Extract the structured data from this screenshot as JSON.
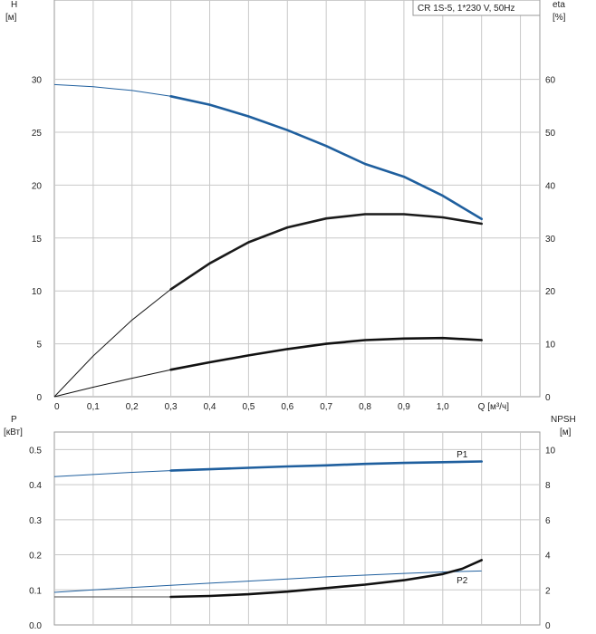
{
  "chart_data": [
    {
      "type": "line",
      "title": "CR 1S-5, 1*230 V, 50Hz",
      "xlabel": "Q [м³/ч]",
      "ylabel": "H [м]",
      "ylabel_line1": "H",
      "ylabel_line2": "[м]",
      "y2label": "eta [%]",
      "y2label_line1": "eta",
      "y2label_line2": "[%]",
      "xlim": [
        0,
        1.25
      ],
      "ylim": [
        0,
        37.5
      ],
      "y2lim": [
        0,
        75
      ],
      "grid": true,
      "x_ticks": [
        "0",
        "0,1",
        "0,2",
        "0,3",
        "0,4",
        "0,5",
        "0,6",
        "0,7",
        "0,8",
        "0,9",
        "1,0"
      ],
      "x_tick_values": [
        0,
        0.1,
        0.2,
        0.3,
        0.4,
        0.5,
        0.6,
        0.7,
        0.8,
        0.9,
        1.0
      ],
      "x_end_label": "Q [м³/ч]",
      "y_ticks": [
        "0",
        "5",
        "10",
        "15",
        "20",
        "25",
        "30"
      ],
      "y_tick_values": [
        0,
        5,
        10,
        15,
        20,
        25,
        30
      ],
      "y2_ticks": [
        "0",
        "10",
        "20",
        "30",
        "40",
        "50",
        "60"
      ],
      "y2_tick_values": [
        0,
        10,
        20,
        30,
        40,
        50,
        60
      ],
      "series": [
        {
          "color": "#1f5f9e",
          "axis": "left",
          "x": [
            0,
            0.1,
            0.2,
            0.3,
            0.4,
            0.5,
            0.6,
            0.7,
            0.8,
            0.9,
            1.0,
            1.1
          ],
          "values": [
            29.5,
            29.3,
            28.95,
            28.4,
            27.6,
            26.5,
            25.2,
            23.7,
            22.0,
            20.8,
            19.0,
            16.8
          ],
          "duty_start": 0.3
        },
        {
          "color": "#1a1a1a",
          "axis": "right",
          "x": [
            0,
            0.1,
            0.2,
            0.3,
            0.4,
            0.5,
            0.6,
            0.7,
            0.8,
            0.9,
            1.0,
            1.1
          ],
          "values": [
            0,
            7.7,
            14.5,
            20.3,
            25.2,
            29.2,
            32.0,
            33.7,
            34.5,
            34.5,
            33.9,
            32.7
          ],
          "duty_start": 0.3
        },
        {
          "color": "#111111",
          "axis": "right",
          "x": [
            0,
            0.1,
            0.2,
            0.3,
            0.4,
            0.5,
            0.6,
            0.7,
            0.8,
            0.9,
            1.0,
            1.1
          ],
          "values": [
            0,
            1.8,
            3.5,
            5.1,
            6.5,
            7.8,
            9.0,
            10.0,
            10.7,
            11.0,
            11.1,
            10.7
          ],
          "duty_start": 0.3
        }
      ]
    },
    {
      "type": "line",
      "xlabel": "",
      "ylabel": "P [кВт]",
      "ylabel_line1": "P",
      "ylabel_line2": "[кВт]",
      "y2label": "NPSH [м]",
      "y2label_line1": "NPSH",
      "y2label_line2": "[м]",
      "xlim": [
        0,
        1.25
      ],
      "ylim": [
        0,
        0.55
      ],
      "y2lim": [
        0,
        11
      ],
      "grid": true,
      "y_ticks": [
        "0.0",
        "0.1",
        "0.2",
        "0.3",
        "0.4",
        "0.5"
      ],
      "y_tick_values": [
        0,
        0.1,
        0.2,
        0.3,
        0.4,
        0.5
      ],
      "y2_ticks": [
        "0",
        "2",
        "4",
        "6",
        "8",
        "10"
      ],
      "y2_tick_values": [
        0,
        2,
        4,
        6,
        8,
        10
      ],
      "series": [
        {
          "name": "P1",
          "color": "#1f5f9e",
          "axis": "left",
          "x": [
            0,
            0.1,
            0.2,
            0.3,
            0.4,
            0.5,
            0.6,
            0.7,
            0.8,
            0.9,
            1.0,
            1.1
          ],
          "values": [
            0.423,
            0.429,
            0.435,
            0.44,
            0.444,
            0.448,
            0.452,
            0.455,
            0.459,
            0.462,
            0.464,
            0.466
          ],
          "duty_start": 0.3,
          "label_x": 1.05
        },
        {
          "name": "P2",
          "color": "#1f5f9e",
          "axis": "left",
          "x": [
            0,
            0.1,
            0.2,
            0.3,
            0.4,
            0.5,
            0.6,
            0.7,
            0.8,
            0.9,
            1.0,
            1.1
          ],
          "values": [
            0.093,
            0.1,
            0.107,
            0.113,
            0.119,
            0.125,
            0.131,
            0.137,
            0.142,
            0.147,
            0.151,
            0.154
          ],
          "duty_start": 1.2,
          "label_x": 1.05
        },
        {
          "color": "#444444",
          "axis": "right",
          "x": [
            0,
            0.3
          ],
          "values": [
            1.6,
            1.6
          ],
          "duty_start": 1.2
        },
        {
          "color": "#111111",
          "axis": "right",
          "x": [
            0.3,
            0.4,
            0.5,
            0.6,
            0.7,
            0.8,
            0.9,
            1.0,
            1.05,
            1.1
          ],
          "values": [
            1.6,
            1.65,
            1.75,
            1.9,
            2.1,
            2.3,
            2.55,
            2.9,
            3.2,
            3.7
          ],
          "duty_start": 0.3
        }
      ]
    }
  ]
}
